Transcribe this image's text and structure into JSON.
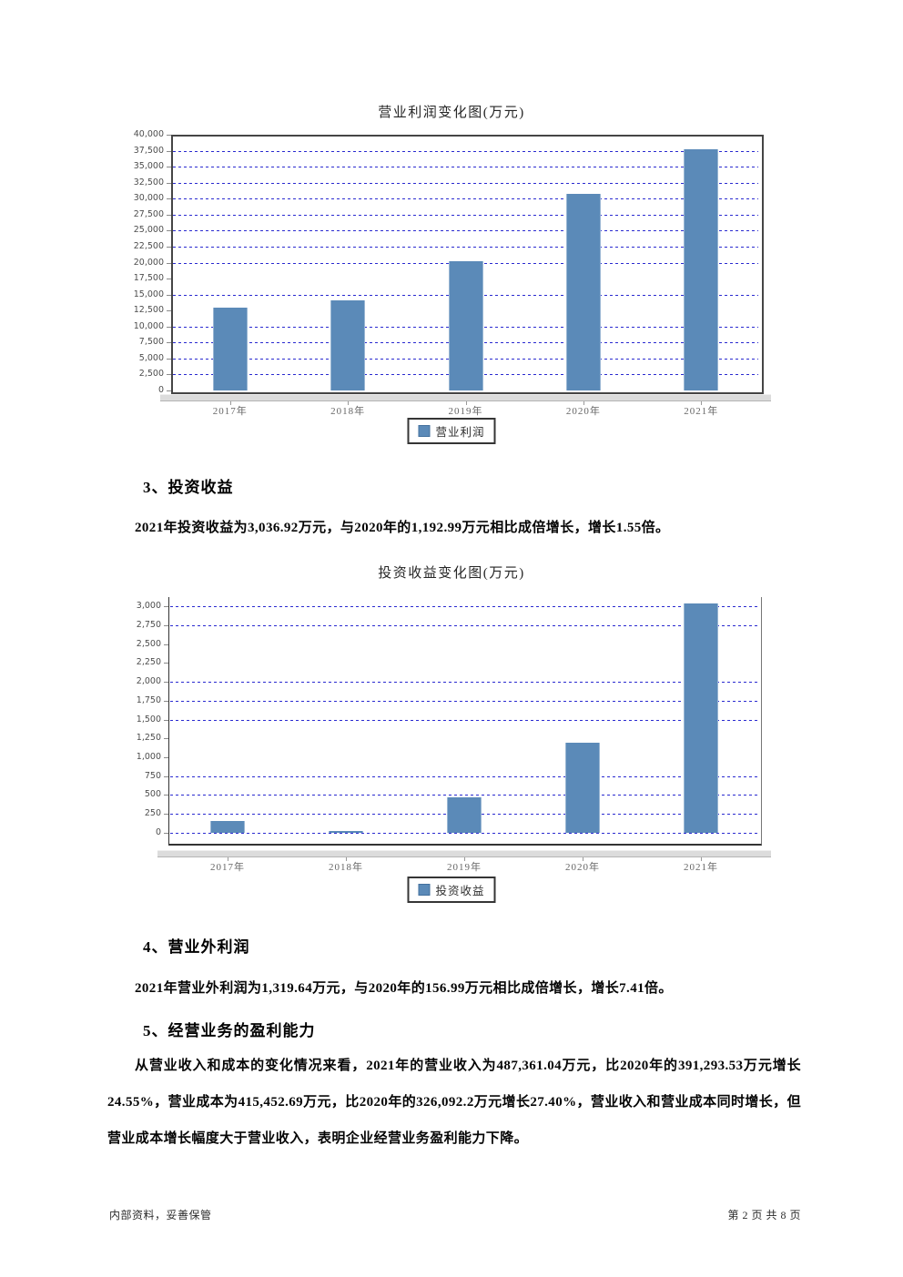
{
  "sections": [
    {
      "heading": "3、投资收益",
      "paragraph": "2021年投资收益为3,036.92万元，与2020年的1,192.99万元相比成倍增长，增长1.55倍。"
    },
    {
      "heading": "4、营业外利润",
      "paragraph": "2021年营业外利润为1,319.64万元，与2020年的156.99万元相比成倍增长，增长7.41倍。"
    },
    {
      "heading": "5、经营业务的盈利能力",
      "paragraph": "从营业收入和成本的变化情况来看，2021年的营业收入为487,361.04万元，比2020年的391,293.53万元增长24.55%，营业成本为415,452.69万元，比2020年的326,092.2万元增长27.40%，营业收入和营业成本同时增长，但营业成本增长幅度大于营业收入，表明企业经营业务盈利能力下降。"
    }
  ],
  "footer": {
    "left": "内部资料，妥善保管",
    "right": "第 2 页  共 8 页"
  },
  "chart_data": [
    {
      "type": "bar",
      "title": "营业利润变化图(万元)",
      "categories": [
        "2017年",
        "2018年",
        "2019年",
        "2020年",
        "2021年"
      ],
      "series": [
        {
          "name": "营业利润",
          "values": [
            13000,
            14050,
            20200,
            30800,
            37800
          ]
        }
      ],
      "xlabel": "",
      "ylabel": "",
      "ylim": [
        0,
        40000
      ],
      "ytick_range": [
        0,
        40000
      ],
      "ytick_step": 2500,
      "gridline_values": [
        2500,
        5000,
        7500,
        10000,
        15000,
        20000,
        22500,
        25000,
        27500,
        30000,
        32500,
        35000,
        37500
      ],
      "grid": "dotted",
      "legend": [
        "营业利润"
      ],
      "legend_position": "bottom",
      "bar_color": "#5b8ab8",
      "grid_color": "#2a2ad0"
    },
    {
      "type": "bar",
      "title": "投资收益变化图(万元)",
      "categories": [
        "2017年",
        "2018年",
        "2019年",
        "2020年",
        "2021年"
      ],
      "series": [
        {
          "name": "投资收益",
          "values": [
            150,
            4,
            470,
            1192.99,
            3036.92
          ]
        }
      ],
      "xlabel": "",
      "ylabel": "",
      "ylim": [
        -150,
        3125
      ],
      "ytick_range": [
        0,
        3000
      ],
      "ytick_step": 250,
      "gridline_values": [
        0,
        250,
        500,
        750,
        1500,
        1750,
        2000,
        2750,
        3000
      ],
      "grid": "dotted",
      "legend": [
        "投资收益"
      ],
      "legend_position": "bottom",
      "bar_color": "#5b8ab8",
      "grid_color": "#2a2ad0"
    }
  ]
}
